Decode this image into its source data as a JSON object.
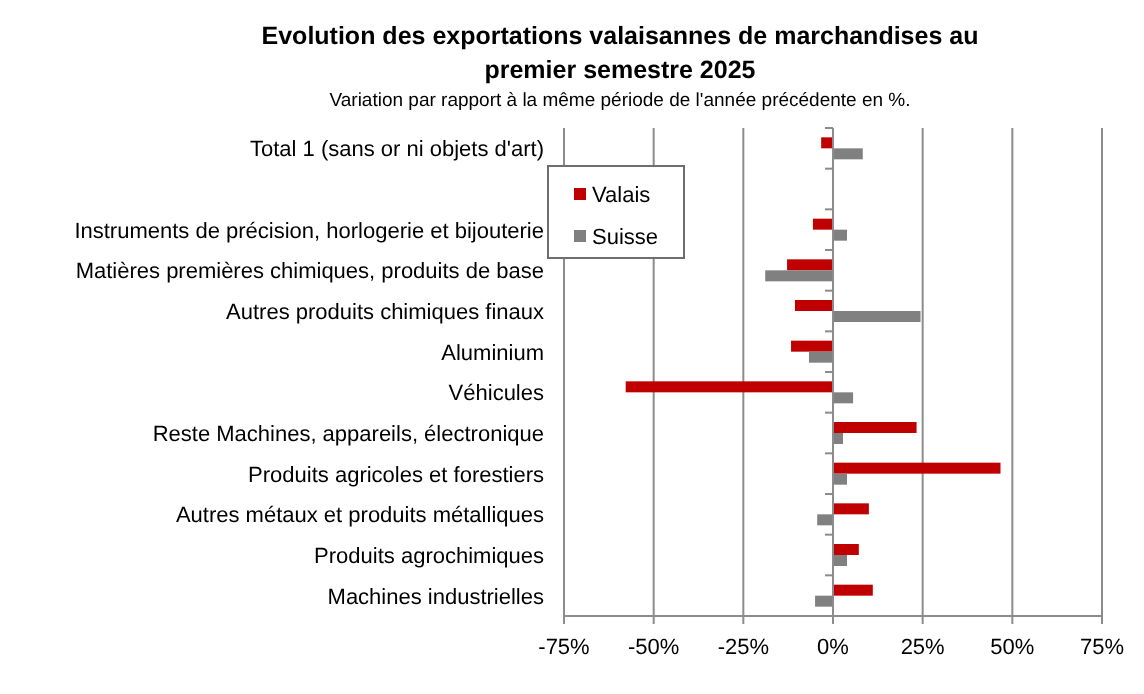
{
  "chart_data": {
    "type": "bar",
    "orientation": "horizontal",
    "title": "Evolution des exportations valaisannes de marchandises au premier semestre 2025",
    "subtitle": "Variation par rapport à la même période de l'année précédente en %.",
    "categories": [
      "Total 1 (sans or ni objets d'art)",
      null,
      "Instruments de précision, horlogerie et bijouterie",
      "Matières premières chimiques, produits de base",
      "Autres produits chimiques finaux",
      "Aluminium",
      "Véhicules",
      "Reste Machines, appareils, électronique",
      "Produits agricoles et forestiers",
      "Autres métaux et produits métalliques",
      "Produits agrochimiques",
      "Machines industrielles"
    ],
    "series": [
      {
        "name": "Valais",
        "color": "#c00000",
        "values": [
          -3.3,
          null,
          -5.6,
          -12.8,
          -10.6,
          -11.7,
          -57.8,
          23.3,
          46.7,
          10,
          7.2,
          11.1
        ]
      },
      {
        "name": "Suisse",
        "color": "#808080",
        "values": [
          8.3,
          null,
          3.9,
          -18.9,
          24.4,
          -6.7,
          5.6,
          2.8,
          3.9,
          -4.4,
          3.9,
          -5
        ]
      }
    ],
    "xlim": [
      -75,
      75
    ],
    "xticks": [
      {
        "value": -75,
        "label": "-75%"
      },
      {
        "value": -50,
        "label": "-50%"
      },
      {
        "value": -25,
        "label": "-25%"
      },
      {
        "value": 0,
        "label": "0%"
      },
      {
        "value": 25,
        "label": "25%"
      },
      {
        "value": 50,
        "label": "50%"
      },
      {
        "value": 75,
        "label": "75%"
      }
    ],
    "grid": "x",
    "legend": "top left"
  }
}
